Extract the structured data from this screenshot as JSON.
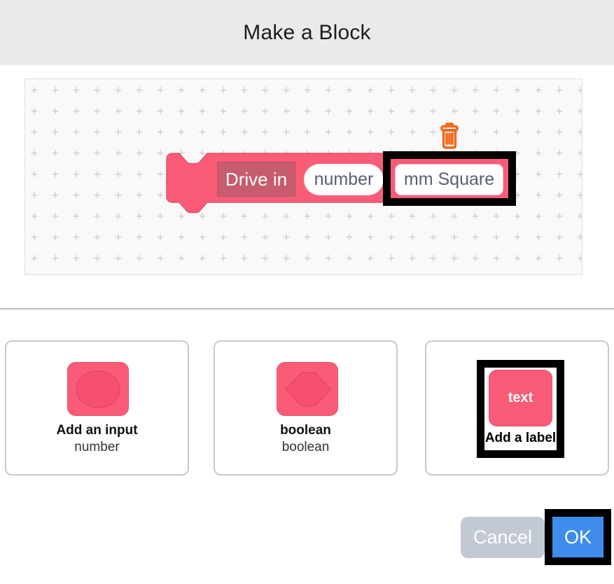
{
  "title": "Make a Block",
  "preview": {
    "block_label": "Drive in",
    "block_param": "number",
    "block_new_label": "mm Square",
    "grid_glyph": "+"
  },
  "cards": [
    {
      "title": "Add an input",
      "subtitle": "number",
      "shape": "oval-input"
    },
    {
      "title": "boolean",
      "subtitle": "boolean",
      "shape": "hexagon-boolean"
    },
    {
      "title": "Add a label",
      "shape": "text-label",
      "shape_label": "text"
    }
  ],
  "buttons": {
    "cancel": "Cancel",
    "ok": "OK"
  },
  "colors": {
    "header_bg": "#e9eaec",
    "canvas_bg": "#f9f9f9",
    "dot": "#c9c9cd",
    "pink": "#fa5c78",
    "pink_stroke": "#e0526d",
    "pink_inner": "#f64f6f",
    "pink_inner_stroke": "#e84664",
    "label_bg": "#c75c6e",
    "field_text": "#575e75",
    "trash": "#f2691d",
    "card_border": "#c9c9c9",
    "divider": "#bcbcbc",
    "cancel_bg": "#c3c9d2",
    "ok_bg": "#3e8cec",
    "highlight": "#000000"
  }
}
